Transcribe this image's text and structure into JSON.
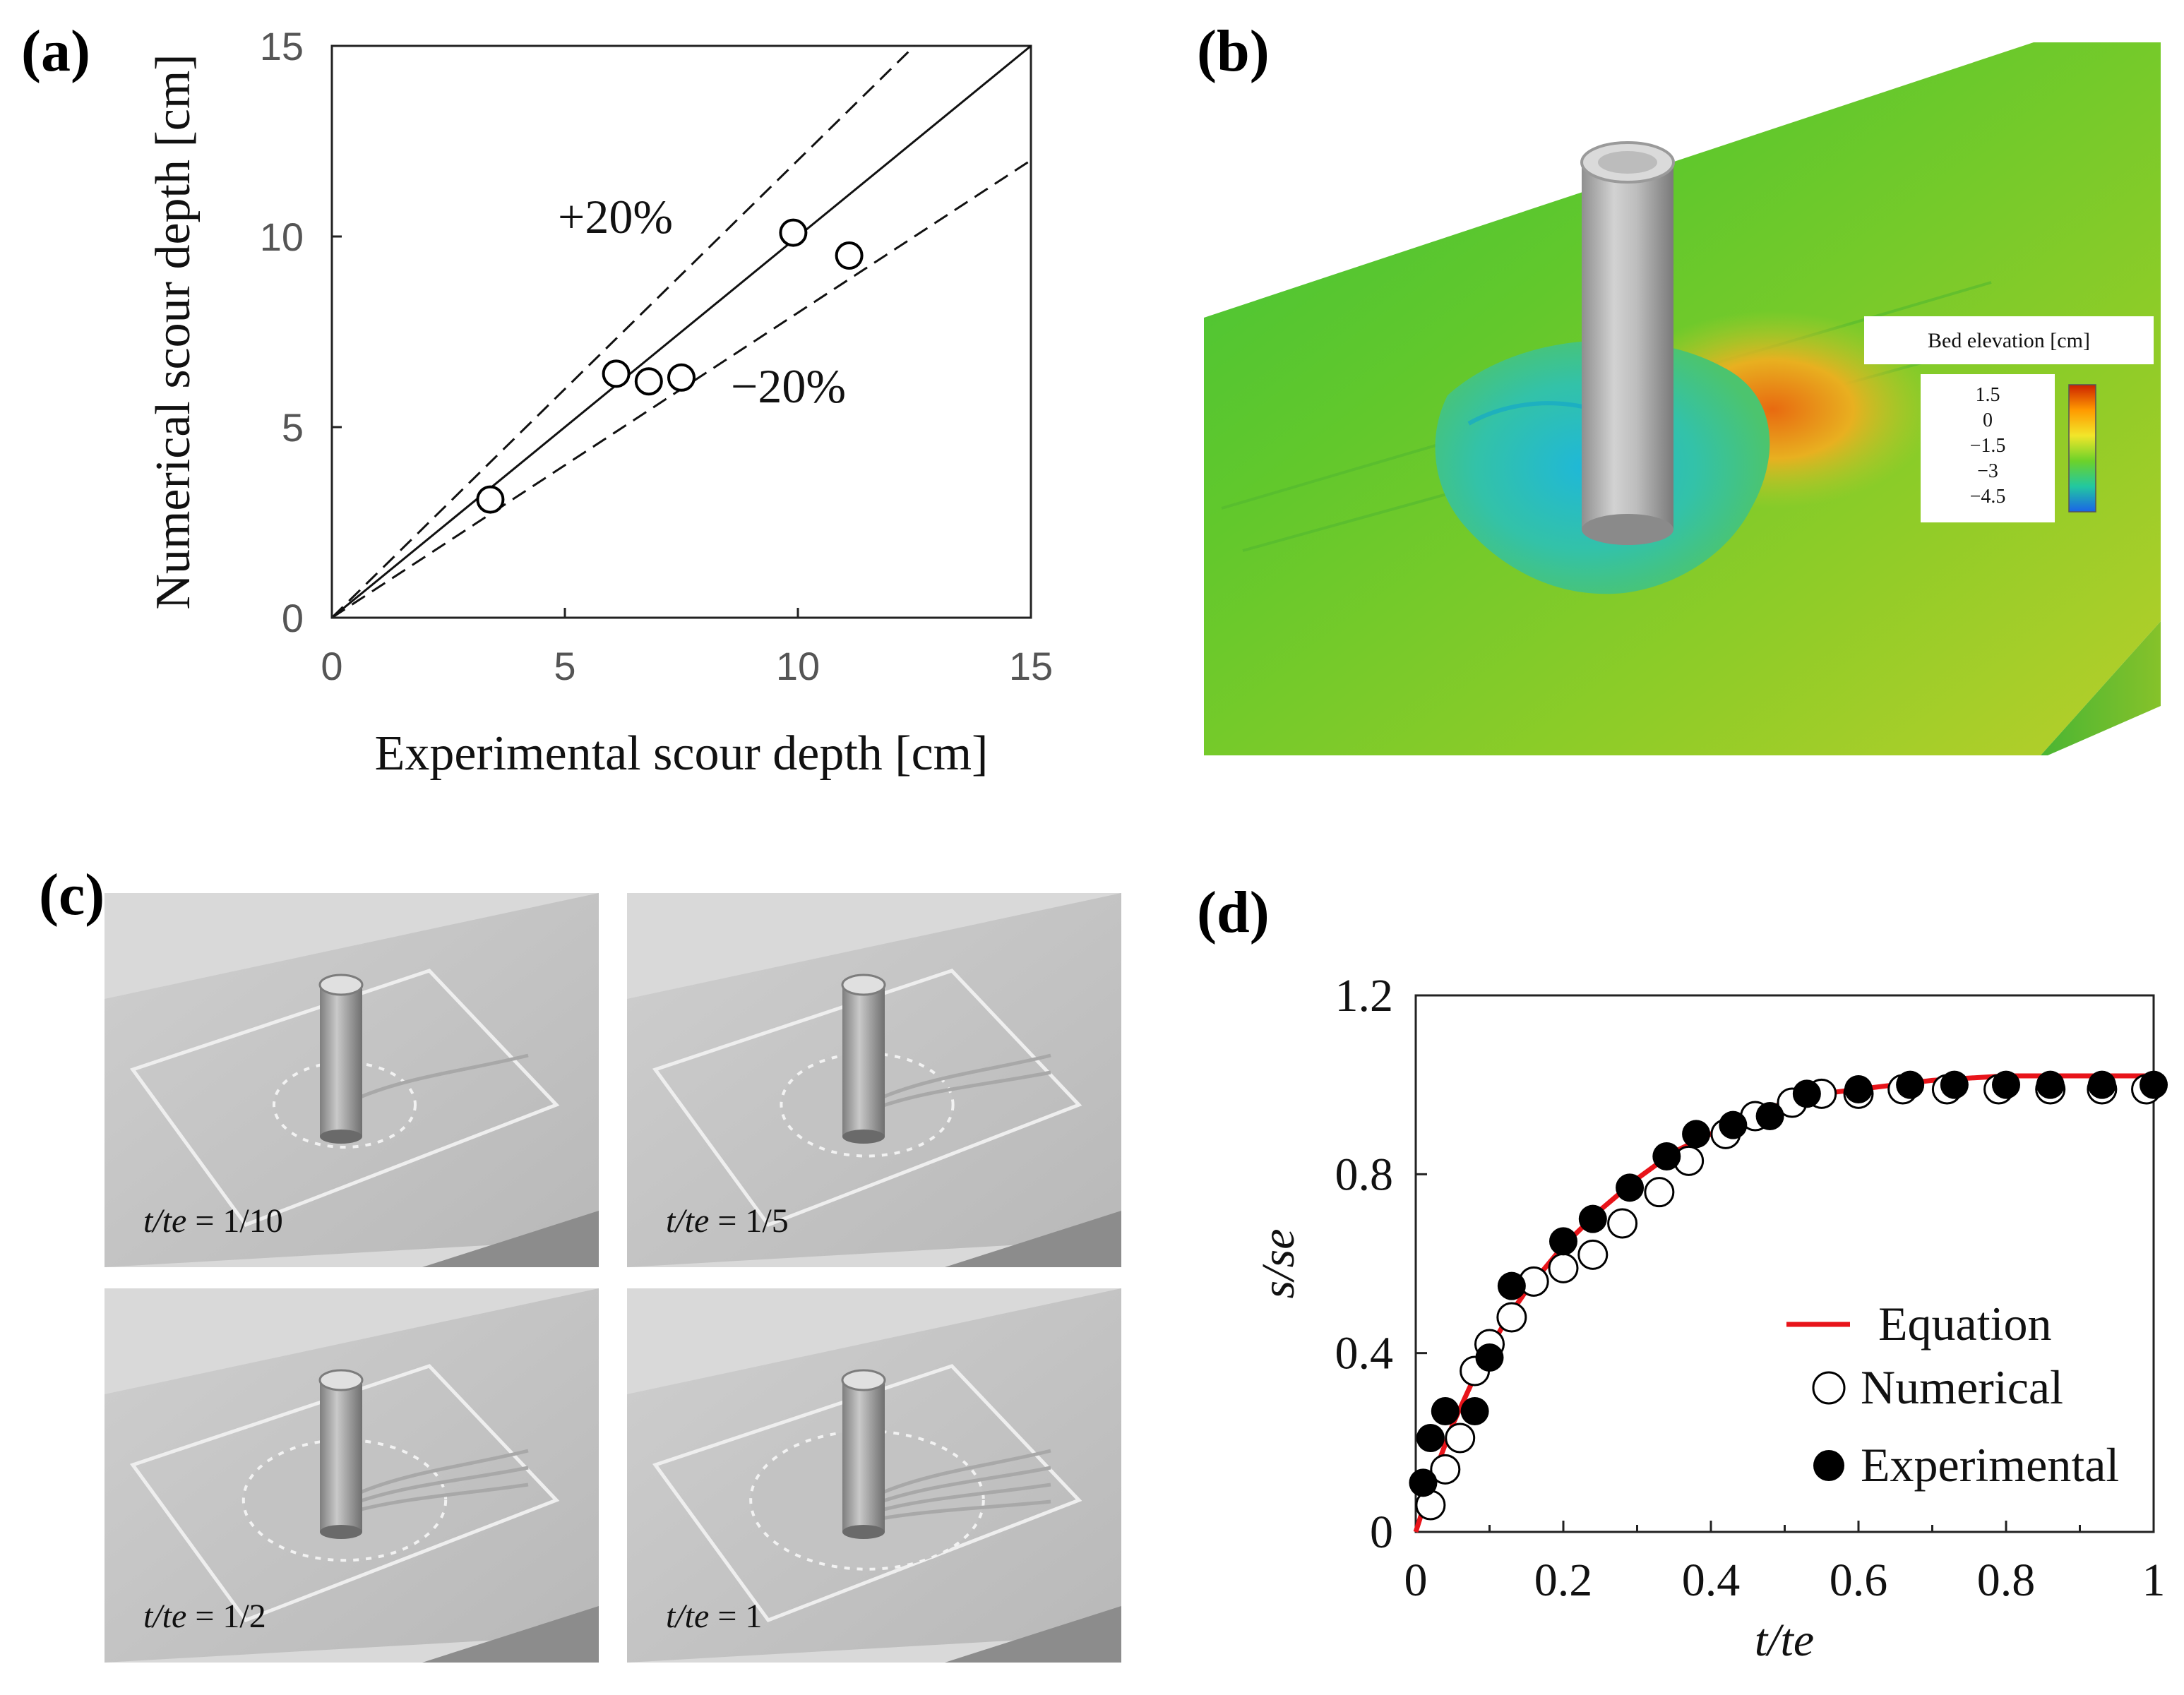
{
  "panels": {
    "a": "(a)",
    "b": "(b)",
    "c": "(c)",
    "d": "(d)"
  },
  "chart_data": [
    {
      "id": "a",
      "type": "scatter",
      "xlabel": "Experimental scour depth [cm]",
      "ylabel": "Numerical scour depth [cm]",
      "xlim": [
        0,
        15
      ],
      "ylim": [
        0,
        15
      ],
      "xticks": [
        0,
        5,
        10,
        15
      ],
      "yticks": [
        0,
        5,
        10,
        15
      ],
      "x": [
        3.4,
        6.1,
        6.8,
        7.5,
        9.9,
        11.1
      ],
      "y": [
        3.1,
        6.4,
        6.2,
        6.3,
        10.1,
        9.5
      ],
      "reference_lines": [
        {
          "name": "1:1",
          "slope": 1.0,
          "style": "solid"
        },
        {
          "name": "+20%",
          "slope": 1.2,
          "style": "dashed"
        },
        {
          "name": "−20%",
          "slope": 0.8,
          "style": "dashed"
        }
      ],
      "annotations": [
        "+20%",
        "−20%"
      ]
    },
    {
      "id": "b",
      "type": "heatmap",
      "colorbar": {
        "title": "Bed elevation [cm]",
        "ticks": [
          "1.5",
          "0",
          "−1.5",
          "−3",
          "−4.5"
        ],
        "colors": [
          "#cc2200",
          "#ff9a00",
          "#f2e62a",
          "#6cd22a",
          "#22c8a0",
          "#1a64e8"
        ]
      }
    },
    {
      "id": "d",
      "type": "line",
      "xlabel": "t/te",
      "ylabel": "s/se",
      "xlim": [
        0,
        1
      ],
      "ylim": [
        0,
        1.2
      ],
      "xticks": [
        "0",
        "0.2",
        "0.4",
        "0.6",
        "0.8",
        "1"
      ],
      "yticks": [
        "0",
        "0.4",
        "0.8",
        "1.2"
      ],
      "series": [
        {
          "name": "Equation",
          "style": "line",
          "color": "#e8141a",
          "x": [
            0,
            0.025,
            0.05,
            0.075,
            0.1,
            0.125,
            0.15,
            0.2,
            0.25,
            0.3,
            0.35,
            0.4,
            0.45,
            0.5,
            0.55,
            0.6,
            0.65,
            0.7,
            0.8,
            0.9,
            1.0
          ],
          "values": [
            0.0,
            0.13,
            0.24,
            0.33,
            0.41,
            0.48,
            0.54,
            0.64,
            0.72,
            0.79,
            0.85,
            0.89,
            0.93,
            0.96,
            0.98,
            0.99,
            1.0,
            1.01,
            1.02,
            1.02,
            1.02
          ]
        },
        {
          "name": "Numerical",
          "style": "open-circle",
          "x": [
            0.02,
            0.04,
            0.06,
            0.08,
            0.1,
            0.13,
            0.16,
            0.2,
            0.24,
            0.28,
            0.33,
            0.37,
            0.42,
            0.46,
            0.51,
            0.55,
            0.6,
            0.66,
            0.72,
            0.79,
            0.86,
            0.93,
            0.99
          ],
          "values": [
            0.06,
            0.14,
            0.21,
            0.36,
            0.42,
            0.48,
            0.56,
            0.59,
            0.62,
            0.69,
            0.76,
            0.83,
            0.89,
            0.93,
            0.96,
            0.98,
            0.98,
            0.99,
            0.99,
            0.99,
            0.99,
            0.99,
            0.99
          ]
        },
        {
          "name": "Experimental",
          "style": "filled-circle",
          "x": [
            0.01,
            0.02,
            0.04,
            0.08,
            0.1,
            0.13,
            0.2,
            0.24,
            0.29,
            0.34,
            0.38,
            0.43,
            0.48,
            0.53,
            0.6,
            0.67,
            0.73,
            0.8,
            0.86,
            0.93,
            1.0
          ],
          "values": [
            0.11,
            0.21,
            0.27,
            0.27,
            0.39,
            0.55,
            0.65,
            0.7,
            0.77,
            0.84,
            0.89,
            0.91,
            0.93,
            0.98,
            0.99,
            1.0,
            1.0,
            1.0,
            1.0,
            1.0,
            1.0
          ]
        }
      ],
      "legend": {
        "position": "bottom-right",
        "entries": [
          "Equation",
          "Numerical",
          "Experimental"
        ]
      }
    }
  ],
  "snapshots": [
    {
      "id": "s1",
      "ratio": "1/10"
    },
    {
      "id": "s2",
      "ratio": "1/5"
    },
    {
      "id": "s3",
      "ratio": "1/2"
    },
    {
      "id": "s4",
      "ratio": "1"
    }
  ]
}
